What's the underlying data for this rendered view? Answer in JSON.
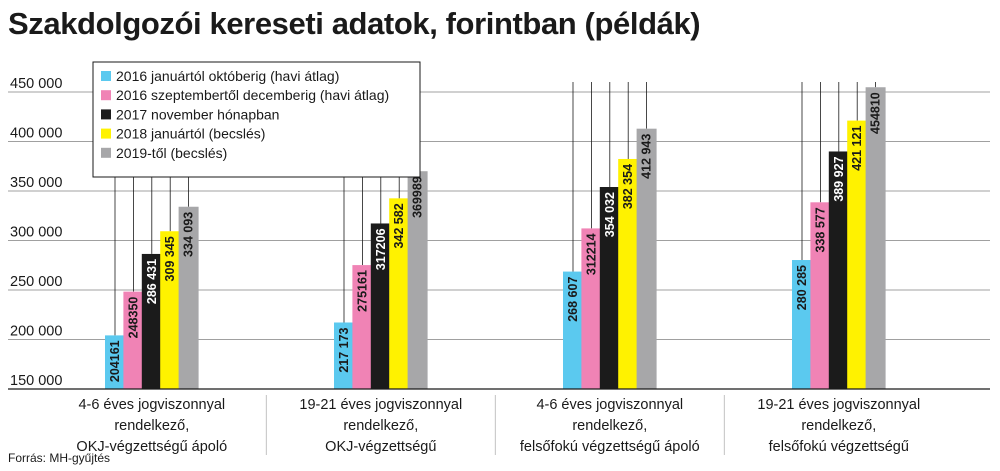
{
  "title": "Szakdolgozói kereseti adatok, forintban (példák)",
  "source": "Forrás: MH-gyűjtés",
  "chart_data": {
    "type": "bar",
    "title": "Szakdolgozói kereseti adatok, forintban (példák)",
    "xlabel": "",
    "ylabel": "",
    "ylim": [
      150000,
      460000
    ],
    "yticks": [
      150000,
      200000,
      250000,
      300000,
      350000,
      400000,
      450000
    ],
    "ytick_labels": [
      "150 000",
      "200 000",
      "250 000",
      "300 000",
      "350 000",
      "400 000",
      "450 000"
    ],
    "legend_position": "top-left",
    "categories": [
      [
        "4-6 éves jogviszonnyal",
        "rendelkező,",
        "OKJ-végzettségű ápoló"
      ],
      [
        "19-21 éves jogviszonnyal",
        "rendelkező,",
        "OKJ-végzettségű"
      ],
      [
        "4-6 éves jogviszonnyal",
        "rendelkező,",
        "felsőfokú végzettségű ápoló"
      ],
      [
        "19-21 éves jogviszonnyal",
        "rendelkező,",
        "felsőfokú végzettségű"
      ]
    ],
    "series": [
      {
        "name": "2016 januártól októberig (havi átlag)",
        "color": "#5bc9ef",
        "values": [
          204161,
          217173,
          268607,
          280285
        ],
        "labels": [
          "204161",
          "217 173",
          "268 607",
          "280 285"
        ],
        "label_color": "#1a1a1a"
      },
      {
        "name": "2016 szeptembertől decemberig (havi átlag)",
        "color": "#f083b5",
        "values": [
          248350,
          275161,
          312214,
          338577
        ],
        "labels": [
          "248350",
          "275161",
          "312214",
          "338 577"
        ],
        "label_color": "#1a1a1a"
      },
      {
        "name": "2017 november hónapban",
        "color": "#1b1b1b",
        "values": [
          286431,
          317206,
          354032,
          389927
        ],
        "labels": [
          "286 431",
          "317206",
          "354 032",
          "389 927"
        ],
        "label_color": "#ffffff"
      },
      {
        "name": "2018 januártól (becslés)",
        "color": "#fff200",
        "values": [
          309345,
          342582,
          382354,
          421121
        ],
        "labels": [
          "309 345",
          "342 582",
          "382 354",
          "421 121"
        ],
        "label_color": "#1a1a1a"
      },
      {
        "name": "2019-től (becslés)",
        "color": "#a7a7a9",
        "values": [
          334093,
          369989,
          412943,
          454810
        ],
        "labels": [
          "334 093",
          "369989",
          "412 943",
          "454810"
        ],
        "label_color": "#1a1a1a"
      }
    ]
  }
}
